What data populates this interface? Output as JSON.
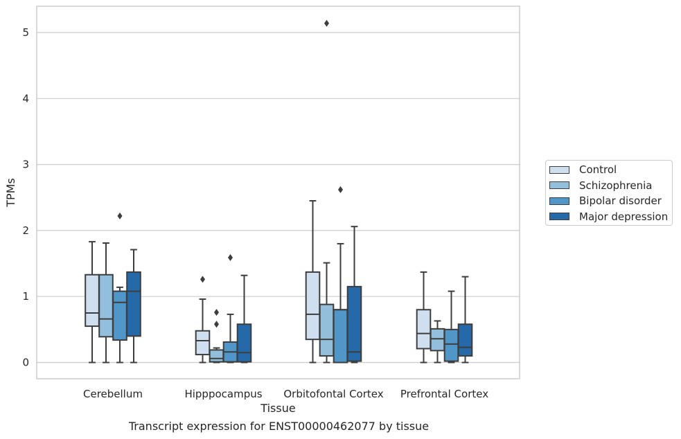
{
  "chart_data": {
    "type": "box",
    "title": "",
    "caption": "Transcript expression for ENST00000462077 by tissue",
    "xlabel": "Tissue",
    "ylabel": "TPMs",
    "ylim": [
      -0.25,
      5.4
    ],
    "yticks": [
      0,
      1,
      2,
      3,
      4,
      5
    ],
    "grid": "horizontal",
    "legend_position": "right",
    "categories": [
      "Cerebellum",
      "Hipppocampus",
      "Orbitofontal Cortex",
      "Prefrontal Cortex"
    ],
    "series": [
      {
        "name": "Control",
        "color": "#cfdff0",
        "boxes": [
          {
            "whisker_low": 0.0,
            "q1": 0.55,
            "median": 0.75,
            "q3": 1.33,
            "whisker_high": 1.83,
            "outliers": []
          },
          {
            "whisker_low": 0.0,
            "q1": 0.12,
            "median": 0.33,
            "q3": 0.48,
            "whisker_high": 0.96,
            "outliers": [
              1.26
            ]
          },
          {
            "whisker_low": 0.0,
            "q1": 0.35,
            "median": 0.73,
            "q3": 1.37,
            "whisker_high": 2.45,
            "outliers": []
          },
          {
            "whisker_low": 0.0,
            "q1": 0.21,
            "median": 0.44,
            "q3": 0.8,
            "whisker_high": 1.37,
            "outliers": []
          }
        ]
      },
      {
        "name": "Schizophrenia",
        "color": "#94bfdc",
        "boxes": [
          {
            "whisker_low": 0.0,
            "q1": 0.39,
            "median": 0.66,
            "q3": 1.33,
            "whisker_high": 1.81,
            "outliers": []
          },
          {
            "whisker_low": 0.0,
            "q1": 0.01,
            "median": 0.06,
            "q3": 0.19,
            "whisker_high": 0.22,
            "outliers": [
              0.58,
              0.76
            ]
          },
          {
            "whisker_low": 0.0,
            "q1": 0.1,
            "median": 0.35,
            "q3": 0.88,
            "whisker_high": 1.51,
            "outliers": [
              5.14
            ]
          },
          {
            "whisker_low": 0.0,
            "q1": 0.18,
            "median": 0.36,
            "q3": 0.51,
            "whisker_high": 0.63,
            "outliers": []
          }
        ]
      },
      {
        "name": "Bipolar disorder",
        "color": "#5096c8",
        "boxes": [
          {
            "whisker_low": 0.0,
            "q1": 0.34,
            "median": 0.91,
            "q3": 1.08,
            "whisker_high": 1.14,
            "outliers": [
              2.22
            ]
          },
          {
            "whisker_low": 0.0,
            "q1": 0.01,
            "median": 0.16,
            "q3": 0.31,
            "whisker_high": 0.73,
            "outliers": [
              1.59
            ]
          },
          {
            "whisker_low": 0.0,
            "q1": 0.0,
            "median": 0.8,
            "q3": 0.8,
            "whisker_high": 1.8,
            "outliers": [
              2.62
            ]
          },
          {
            "whisker_low": 0.0,
            "q1": 0.02,
            "median": 0.28,
            "q3": 0.5,
            "whisker_high": 1.08,
            "outliers": []
          }
        ]
      },
      {
        "name": "Major depression",
        "color": "#2569a8",
        "boxes": [
          {
            "whisker_low": 0.0,
            "q1": 0.4,
            "median": 1.08,
            "q3": 1.37,
            "whisker_high": 1.71,
            "outliers": []
          },
          {
            "whisker_low": 0.0,
            "q1": 0.01,
            "median": 0.15,
            "q3": 0.58,
            "whisker_high": 1.32,
            "outliers": []
          },
          {
            "whisker_low": 0.0,
            "q1": 0.02,
            "median": 0.16,
            "q3": 1.15,
            "whisker_high": 2.06,
            "outliers": []
          },
          {
            "whisker_low": 0.0,
            "q1": 0.1,
            "median": 0.23,
            "q3": 0.58,
            "whisker_high": 1.3,
            "outliers": []
          }
        ]
      }
    ]
  }
}
